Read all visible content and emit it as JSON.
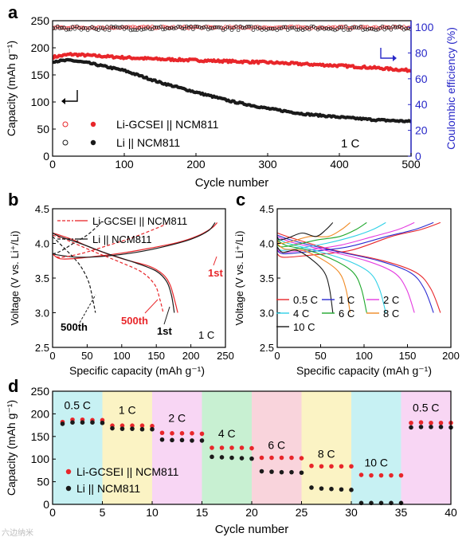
{
  "chart_data": [
    {
      "id": "a",
      "panel_label": "a",
      "type": "scatter",
      "xlabel": "Cycle number",
      "ylabel": "Capacity (mAh g⁻¹)",
      "ylabel_right": "Coulombic efficiency (%)",
      "xlim": [
        0,
        500
      ],
      "ylim": [
        0,
        250
      ],
      "ylim_right": [
        0,
        105
      ],
      "x_ticks": [
        0,
        100,
        200,
        300,
        400,
        500
      ],
      "y_ticks": [
        0,
        50,
        100,
        150,
        200,
        250
      ],
      "y_right_ticks": [
        0,
        20,
        40,
        60,
        80,
        100
      ],
      "annotation": "1 C",
      "colors": {
        "red": "#e8262a",
        "black": "#1a1a1a",
        "right_axis": "#2828c8"
      },
      "legend": [
        {
          "label": "Li-GCSEI || NCM811",
          "color": "#e8262a"
        },
        {
          "label": "Li || NCM811",
          "color": "#1a1a1a"
        }
      ],
      "series": [
        {
          "name": "Li-GCSEI || NCM811",
          "kind": "capacity",
          "x": [
            1,
            25,
            50,
            100,
            150,
            200,
            250,
            300,
            350,
            400,
            450,
            500
          ],
          "values": [
            183,
            188,
            186,
            182,
            179,
            177,
            175,
            173,
            170,
            167,
            163,
            158
          ]
        },
        {
          "name": "Li || NCM811",
          "kind": "capacity",
          "x": [
            1,
            25,
            50,
            100,
            150,
            200,
            250,
            300,
            350,
            400,
            450,
            500
          ],
          "values": [
            175,
            177,
            172,
            158,
            136,
            118,
            101,
            88,
            78,
            72,
            67,
            64
          ]
        },
        {
          "name": "Li-GCSEI || NCM811",
          "kind": "coulombic_efficiency",
          "x": [
            1,
            500
          ],
          "values": [
            99.8,
            99.8
          ]
        },
        {
          "name": "Li || NCM811",
          "kind": "coulombic_efficiency",
          "x": [
            1,
            500
          ],
          "values": [
            99.2,
            99.2
          ]
        }
      ]
    },
    {
      "id": "b",
      "panel_label": "b",
      "type": "line",
      "xlabel": "Specific capacity (mAh g⁻¹)",
      "ylabel": "Voltage (V vs. Li⁺/Li)",
      "xlim": [
        0,
        250
      ],
      "ylim": [
        2.5,
        4.5
      ],
      "x_ticks": [
        0,
        50,
        100,
        150,
        200,
        250
      ],
      "y_ticks": [
        2.5,
        3.0,
        3.5,
        4.0,
        4.5
      ],
      "annotation": "1 C",
      "legend": [
        {
          "label": "Li-GCSEI || NCM811",
          "color": "#e8262a"
        },
        {
          "label": "Li || NCM811",
          "color": "#1a1a1a"
        }
      ],
      "labels": {
        "first_red": "1st",
        "first_black": "1st",
        "cycle500_red": "500th",
        "cycle500_black": "500th"
      },
      "series": [
        {
          "name": "Li-GCSEI || NCM811",
          "cycle": "1st",
          "branch": "charge",
          "x": [
            0,
            10,
            30,
            60,
            100,
            140,
            180,
            210,
            230,
            238
          ],
          "values": [
            3.85,
            3.78,
            3.78,
            3.81,
            3.86,
            3.93,
            4.01,
            4.11,
            4.22,
            4.3
          ]
        },
        {
          "name": "Li-GCSEI || NCM811",
          "cycle": "1st",
          "branch": "discharge",
          "x": [
            0,
            10,
            30,
            60,
            100,
            140,
            160,
            170,
            176,
            181
          ],
          "values": [
            4.15,
            4.12,
            4.05,
            3.92,
            3.78,
            3.67,
            3.55,
            3.4,
            3.2,
            3.0
          ]
        },
        {
          "name": "Li || NCM811",
          "cycle": "1st",
          "branch": "charge",
          "x": [
            0,
            10,
            40,
            80,
            120,
            160,
            200,
            225,
            235
          ],
          "values": [
            3.85,
            3.83,
            3.8,
            3.82,
            3.87,
            3.95,
            4.06,
            4.18,
            4.3
          ]
        },
        {
          "name": "Li || NCM811",
          "cycle": "1st",
          "branch": "discharge",
          "x": [
            0,
            10,
            40,
            80,
            120,
            150,
            165,
            172,
            176
          ],
          "values": [
            4.15,
            4.1,
            4.0,
            3.85,
            3.72,
            3.6,
            3.45,
            3.25,
            3.0
          ]
        },
        {
          "name": "Li-GCSEI || NCM811",
          "cycle": "500th",
          "branch": "charge",
          "x": [
            0,
            10,
            40,
            80,
            120,
            160,
            165
          ],
          "values": [
            3.85,
            3.8,
            3.85,
            3.97,
            4.1,
            4.26,
            4.3
          ]
        },
        {
          "name": "Li-GCSEI || NCM811",
          "cycle": "500th",
          "branch": "discharge",
          "x": [
            0,
            20,
            60,
            100,
            130,
            148,
            155,
            160
          ],
          "values": [
            4.12,
            4.05,
            3.88,
            3.72,
            3.58,
            3.4,
            3.2,
            3.0
          ]
        },
        {
          "name": "Li || NCM811",
          "cycle": "500th",
          "branch": "charge",
          "x": [
            0,
            10,
            30,
            50,
            65,
            70
          ],
          "values": [
            3.85,
            3.88,
            4.0,
            4.12,
            4.25,
            4.3
          ]
        },
        {
          "name": "Li || NCM811",
          "cycle": "500th",
          "branch": "discharge",
          "x": [
            0,
            10,
            25,
            40,
            52,
            58,
            62
          ],
          "values": [
            4.1,
            4.0,
            3.85,
            3.68,
            3.45,
            3.2,
            3.0
          ]
        }
      ]
    },
    {
      "id": "c",
      "panel_label": "c",
      "type": "line",
      "xlabel": "Specific capacity (mAh g⁻¹)",
      "ylabel": "Voltage (V vs. Li⁺/Li)",
      "xlim": [
        0,
        200
      ],
      "ylim": [
        2.5,
        4.5
      ],
      "x_ticks": [
        0,
        50,
        100,
        150,
        200
      ],
      "y_ticks": [
        2.5,
        3.0,
        3.5,
        4.0,
        4.5
      ],
      "legend": [
        {
          "label": "0.5 C",
          "color": "#e8262a"
        },
        {
          "label": "1 C",
          "color": "#2b2bd1"
        },
        {
          "label": "2 C",
          "color": "#e43be0"
        },
        {
          "label": "4 C",
          "color": "#2fd0e6"
        },
        {
          "label": "6 C",
          "color": "#1fa82d"
        },
        {
          "label": "8 C",
          "color": "#f08a24"
        },
        {
          "label": "10 C",
          "color": "#1a1a1a"
        }
      ],
      "series": [
        {
          "name": "0.5 C",
          "capacity": 188,
          "charge_start": 3.85,
          "discharge_start": 4.15
        },
        {
          "name": "1 C",
          "capacity": 180,
          "charge_start": 3.9,
          "discharge_start": 4.12
        },
        {
          "name": "2 C",
          "capacity": 158,
          "charge_start": 3.92,
          "discharge_start": 4.1
        },
        {
          "name": "4 C",
          "capacity": 125,
          "charge_start": 3.95,
          "discharge_start": 4.08
        },
        {
          "name": "6 C",
          "capacity": 103,
          "charge_start": 4.0,
          "discharge_start": 4.05
        },
        {
          "name": "8 C",
          "capacity": 84,
          "charge_start": 4.05,
          "discharge_start": 4.0
        },
        {
          "name": "10 C",
          "capacity": 64,
          "charge_start": 4.1,
          "discharge_start": 3.95
        }
      ]
    },
    {
      "id": "d",
      "panel_label": "d",
      "type": "scatter",
      "xlabel": "Cycle number",
      "ylabel": "Capacity (mAh g⁻¹)",
      "xlim": [
        0,
        40
      ],
      "ylim": [
        0,
        250
      ],
      "x_ticks": [
        0,
        5,
        10,
        15,
        20,
        25,
        30,
        35,
        40
      ],
      "y_ticks": [
        0,
        50,
        100,
        150,
        200,
        250
      ],
      "legend": [
        {
          "label": "Li-GCSEI || NCM811",
          "color": "#e8262a"
        },
        {
          "label": "Li || NCM811",
          "color": "#1a1a1a"
        }
      ],
      "bands": [
        {
          "label": "0.5 C",
          "from": 0,
          "to": 5,
          "color": "#c7f1f3"
        },
        {
          "label": "1 C",
          "from": 5,
          "to": 10,
          "color": "#fbf3c4"
        },
        {
          "label": "2 C",
          "from": 10,
          "to": 15,
          "color": "#f8d6f4"
        },
        {
          "label": "4 C",
          "from": 15,
          "to": 20,
          "color": "#c8f0d2"
        },
        {
          "label": "6 C",
          "from": 20,
          "to": 25,
          "color": "#f9d4dc"
        },
        {
          "label": "8 C",
          "from": 25,
          "to": 30,
          "color": "#fbf3c4"
        },
        {
          "label": "10 C",
          "from": 30,
          "to": 35,
          "color": "#c7f1f3"
        },
        {
          "label": "0.5 C",
          "from": 35,
          "to": 40,
          "color": "#f8d6f4"
        }
      ],
      "series": [
        {
          "name": "Li-GCSEI || NCM811",
          "x": [
            1,
            2,
            3,
            4,
            5,
            6,
            7,
            8,
            9,
            10,
            11,
            12,
            13,
            14,
            15,
            16,
            17,
            18,
            19,
            20,
            21,
            22,
            23,
            24,
            25,
            26,
            27,
            28,
            29,
            30,
            31,
            32,
            33,
            34,
            35,
            36,
            37,
            38,
            39,
            40
          ],
          "values": [
            182,
            187,
            187,
            186,
            186,
            174,
            174,
            174,
            174,
            173,
            158,
            157,
            157,
            157,
            156,
            125,
            125,
            125,
            125,
            124,
            103,
            103,
            103,
            103,
            102,
            85,
            84,
            84,
            84,
            84,
            65,
            64,
            64,
            64,
            64,
            180,
            181,
            180,
            180,
            180
          ]
        },
        {
          "name": "Li || NCM811",
          "x": [
            1,
            2,
            3,
            4,
            5,
            6,
            7,
            8,
            9,
            10,
            11,
            12,
            13,
            14,
            15,
            16,
            17,
            18,
            19,
            20,
            21,
            22,
            23,
            24,
            25,
            26,
            27,
            28,
            29,
            30,
            31,
            32,
            33,
            34,
            35,
            36,
            37,
            38,
            39,
            40
          ],
          "values": [
            178,
            181,
            181,
            181,
            180,
            168,
            167,
            167,
            166,
            166,
            143,
            142,
            142,
            141,
            141,
            105,
            104,
            103,
            102,
            101,
            73,
            72,
            71,
            71,
            70,
            37,
            35,
            34,
            33,
            32,
            3,
            3,
            3,
            3,
            3,
            170,
            171,
            171,
            171,
            170
          ]
        }
      ]
    }
  ],
  "watermark": "六边纳米"
}
